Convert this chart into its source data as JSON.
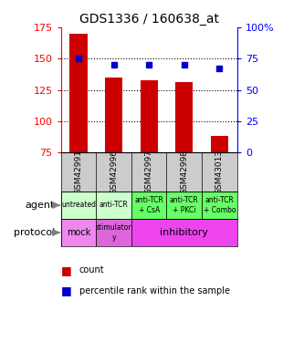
{
  "title": "GDS1336 / 160638_at",
  "samples": [
    "GSM42991",
    "GSM42996",
    "GSM42997",
    "GSM42998",
    "GSM43013"
  ],
  "counts": [
    170,
    135,
    133,
    131,
    88
  ],
  "percentiles": [
    75,
    70,
    70,
    70,
    67
  ],
  "y_min": 75,
  "y_max": 175,
  "y_ticks": [
    75,
    100,
    125,
    150,
    175
  ],
  "y_tick_labels": [
    "75",
    "100",
    "125",
    "150",
    "175"
  ],
  "y2_ticks": [
    0,
    25,
    50,
    75,
    100
  ],
  "y2_tick_labels": [
    "0",
    "25",
    "50",
    "75",
    "100%"
  ],
  "bar_color": "#cc0000",
  "dot_color": "#0000cc",
  "agent_labels": [
    "untreated",
    "anti-TCR",
    "anti-TCR\n+ CsA",
    "anti-TCR\n+ PKCi",
    "anti-TCR\n+ Combo"
  ],
  "agent_bg_light": "#ccffcc",
  "agent_bg_dark": "#66ff66",
  "protocol_mock_color": "#ee88ee",
  "protocol_stim_color": "#dd66dd",
  "protocol_inhib_color": "#ee44ee",
  "bar_color_legend": "#cc0000",
  "dot_color_legend": "#0000cc",
  "sample_bg_color": "#cccccc",
  "background_color": "#ffffff",
  "grid_yticks": [
    100,
    125,
    150
  ]
}
